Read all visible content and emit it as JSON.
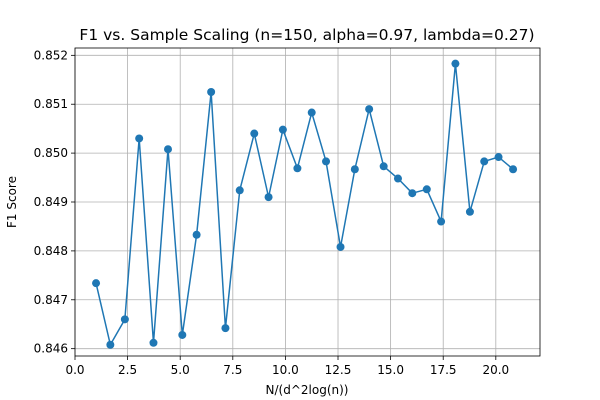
{
  "chart_data": {
    "type": "line",
    "title": "F1 vs. Sample Scaling (n=150, alpha=0.97, lambda=0.27)",
    "xlabel": "N/(d^2log(n))",
    "ylabel": "F1 Score",
    "xlim": [
      0.0,
      22.1
    ],
    "ylim": [
      0.84585,
      0.85215
    ],
    "xticks": [
      0.0,
      2.5,
      5.0,
      7.5,
      10.0,
      12.5,
      15.0,
      17.5,
      20.0
    ],
    "xtick_labels": [
      "0.0",
      "2.5",
      "5.0",
      "7.5",
      "10.0",
      "12.5",
      "15.0",
      "17.5",
      "20.0"
    ],
    "yticks": [
      0.846,
      0.847,
      0.848,
      0.849,
      0.85,
      0.851,
      0.852
    ],
    "ytick_labels": [
      "0.846",
      "0.847",
      "0.848",
      "0.849",
      "0.850",
      "0.851",
      "0.852"
    ],
    "grid": true,
    "series": [
      {
        "color": "#1f77b4",
        "marker": "circle",
        "x": [
          1.0,
          1.68,
          2.37,
          3.05,
          3.73,
          4.42,
          5.1,
          5.78,
          6.47,
          7.15,
          7.83,
          8.52,
          9.2,
          9.88,
          10.57,
          11.25,
          11.93,
          12.62,
          13.3,
          13.98,
          14.67,
          15.35,
          16.03,
          16.72,
          17.4,
          18.08,
          18.77,
          19.45,
          20.13,
          20.82
        ],
        "y": [
          0.84734,
          0.84608,
          0.8466,
          0.8503,
          0.84612,
          0.85008,
          0.84628,
          0.84833,
          0.85125,
          0.84642,
          0.84924,
          0.8504,
          0.8491,
          0.85048,
          0.84969,
          0.85083,
          0.84983,
          0.84808,
          0.84967,
          0.8509,
          0.84973,
          0.84948,
          0.84918,
          0.84926,
          0.8486,
          0.85183,
          0.8488,
          0.84983,
          0.84992,
          0.84967
        ]
      }
    ]
  }
}
